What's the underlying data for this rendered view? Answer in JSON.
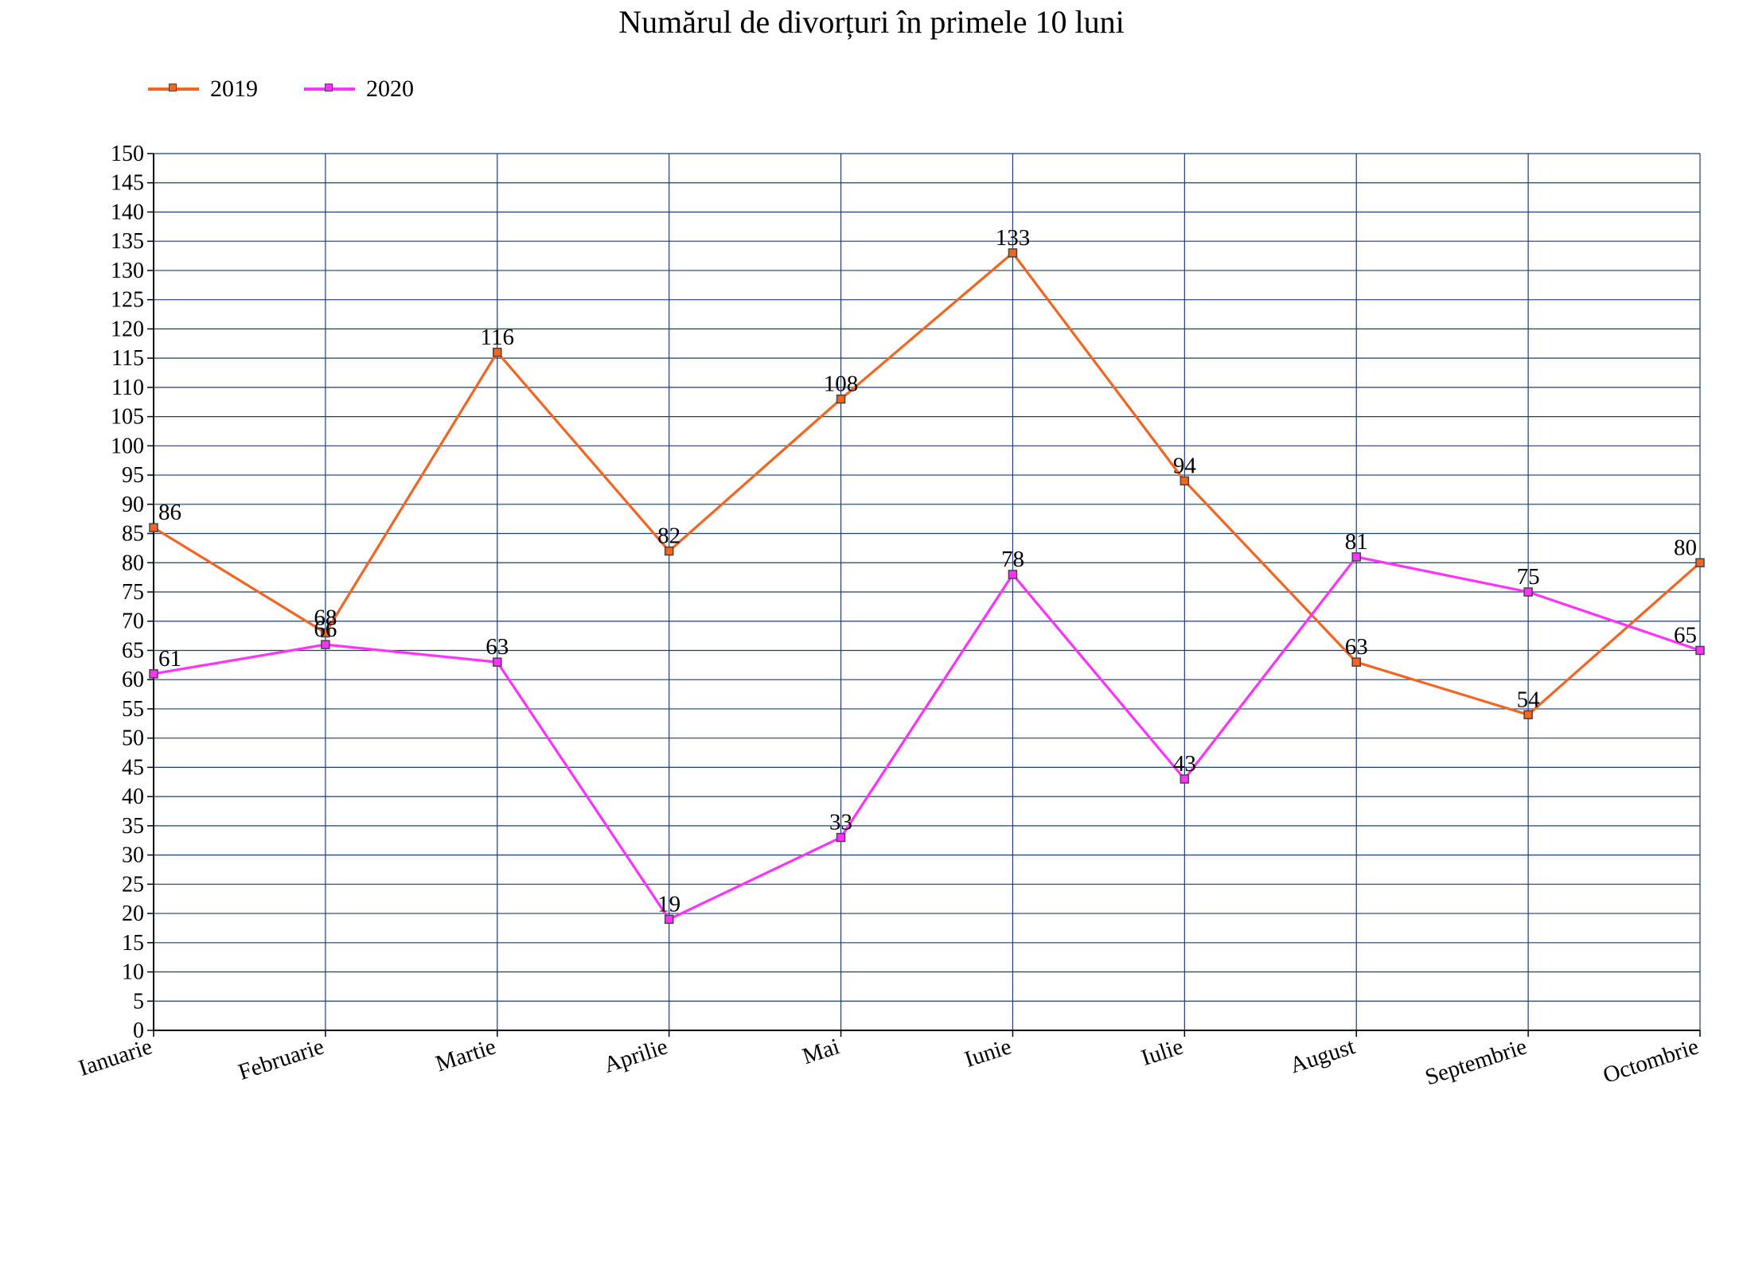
{
  "chart_data": {
    "type": "line",
    "title": "Numărul de divorțuri în primele 10 luni",
    "xlabel": "",
    "ylabel": "",
    "categories": [
      "Ianuarie",
      "Februarie",
      "Martie",
      "Aprilie",
      "Mai",
      "Iunie",
      "Iulie",
      "August",
      "Septembrie",
      "Octombrie"
    ],
    "series": [
      {
        "name": "2019",
        "color": "#f26522",
        "values": [
          86,
          68,
          116,
          82,
          108,
          133,
          94,
          63,
          54,
          80
        ]
      },
      {
        "name": "2020",
        "color": "#ff33ff",
        "values": [
          61,
          66,
          63,
          19,
          33,
          78,
          43,
          81,
          75,
          65
        ]
      }
    ],
    "ylim": [
      0,
      150
    ],
    "ytick_step": 5,
    "grid": true,
    "grid_color": "#1f3f6e",
    "legend_position": "top-left",
    "data_labels": true
  }
}
